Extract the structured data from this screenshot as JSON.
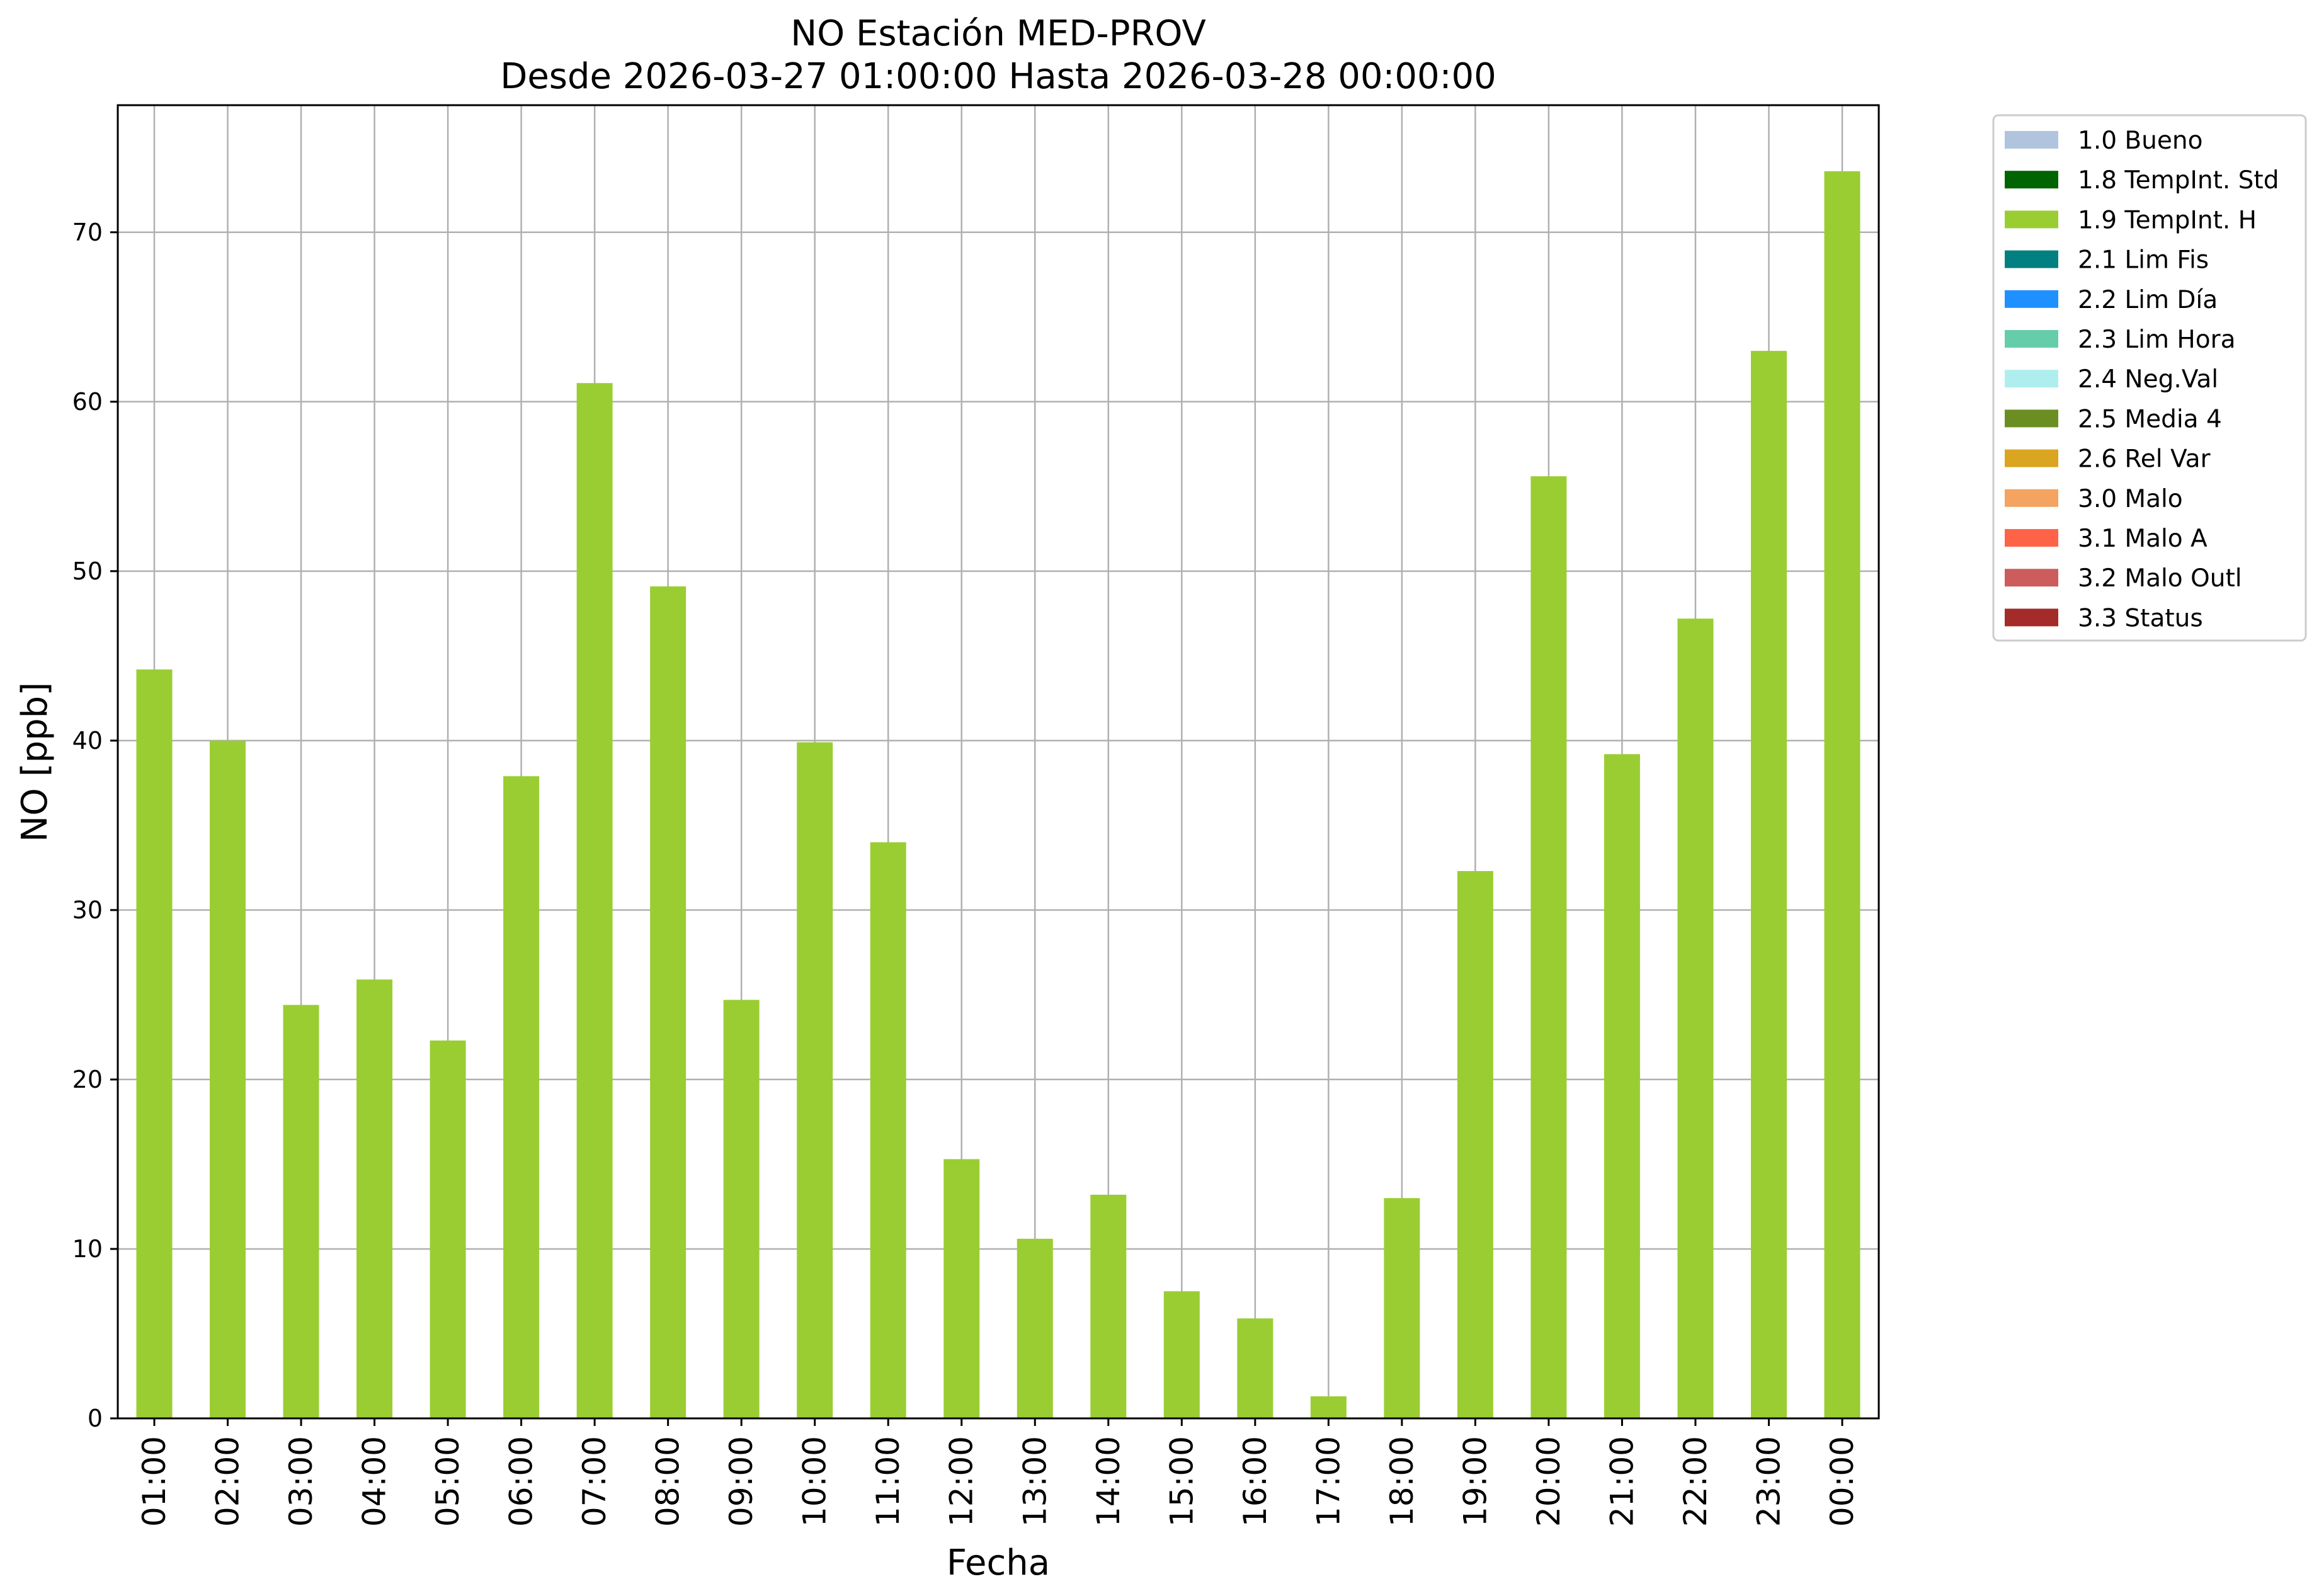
{
  "chart_data": {
    "type": "bar",
    "title": "NO Estación MED-PROV",
    "subtitle": "Desde 2026-03-27 01:00:00 Hasta 2026-03-28 00:00:00",
    "xlabel": "Fecha",
    "ylabel": "NO [ppb]",
    "ylim": [
      0,
      77.5
    ],
    "yticks": [
      0,
      10,
      20,
      30,
      40,
      50,
      60,
      70
    ],
    "grid": true,
    "legend_position": "outside-top-right",
    "categories": [
      "01:00",
      "02:00",
      "03:00",
      "04:00",
      "05:00",
      "06:00",
      "07:00",
      "08:00",
      "09:00",
      "10:00",
      "11:00",
      "12:00",
      "13:00",
      "14:00",
      "15:00",
      "16:00",
      "17:00",
      "18:00",
      "19:00",
      "20:00",
      "21:00",
      "22:00",
      "23:00",
      "00:00"
    ],
    "series": [
      {
        "name": "1.9 TempInt. H",
        "color": "#9acd32",
        "values": [
          44.2,
          40.0,
          24.4,
          25.9,
          22.3,
          37.9,
          61.1,
          49.1,
          24.7,
          39.9,
          34.0,
          15.3,
          10.6,
          13.2,
          7.5,
          5.9,
          1.3,
          13.0,
          32.3,
          55.6,
          39.2,
          47.2,
          63.0,
          73.6
        ]
      }
    ],
    "legend": [
      {
        "label": "1.0 Bueno",
        "color": "#b0c4de"
      },
      {
        "label": "1.8 TempInt. Std",
        "color": "#006400"
      },
      {
        "label": "1.9 TempInt. H",
        "color": "#9acd32"
      },
      {
        "label": "2.1 Lim Fis",
        "color": "#008080"
      },
      {
        "label": "2.2 Lim Día",
        "color": "#1e90ff"
      },
      {
        "label": "2.3 Lim Hora",
        "color": "#66cdaa"
      },
      {
        "label": "2.4 Neg.Val",
        "color": "#afeeee"
      },
      {
        "label": "2.5 Media 4",
        "color": "#6b8e23"
      },
      {
        "label": "2.6 Rel Var",
        "color": "#daa520"
      },
      {
        "label": "3.0 Malo",
        "color": "#f4a460"
      },
      {
        "label": "3.1 Malo A",
        "color": "#ff6347"
      },
      {
        "label": "3.2 Malo Outl",
        "color": "#cd5c5c"
      },
      {
        "label": "3.3 Status",
        "color": "#a52a2a"
      }
    ]
  }
}
